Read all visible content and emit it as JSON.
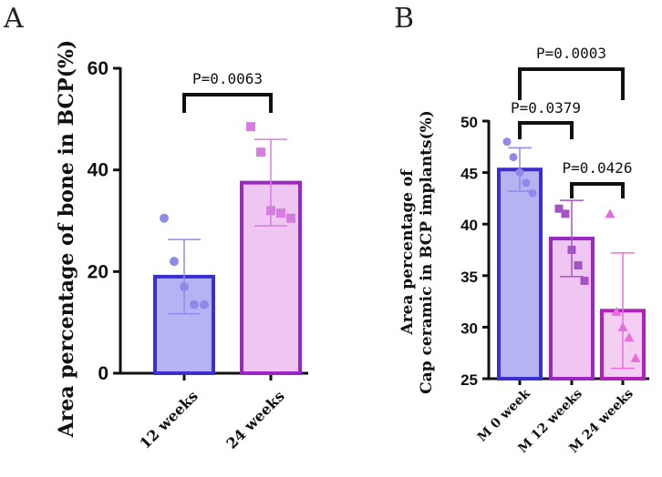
{
  "chart_data": [
    {
      "panel": "A",
      "type": "bar",
      "ylabel": "Area percentage of bone in BCP(%)",
      "xlabel": "",
      "ylim": [
        0,
        60
      ],
      "yticks": [
        0,
        20,
        40,
        60
      ],
      "categories": [
        "12 weeks",
        "24 weeks"
      ],
      "values": [
        19,
        37.5
      ],
      "errors": [
        7.3,
        8.5
      ],
      "points": [
        [
          30.5,
          22,
          17,
          13.5,
          13.5
        ],
        [
          48.5,
          43.5,
          32,
          31.5,
          30.5
        ]
      ],
      "markers": [
        "circle",
        "square"
      ],
      "colors": {
        "edge": [
          "#3a2fd1",
          "#9b27c2"
        ],
        "fill": [
          "#b5b4f2",
          "#efc6f2"
        ],
        "point": [
          "#8f8aea",
          "#d77de1"
        ]
      },
      "comparisons": [
        {
          "from": 0,
          "to": 1,
          "label": "P=0.0063"
        }
      ]
    },
    {
      "panel": "B",
      "type": "bar",
      "ylabel": [
        "Area percentage of",
        "Cap ceramic in BCP implants(%)"
      ],
      "xlabel": "",
      "ylim": [
        25,
        50
      ],
      "yticks": [
        25,
        30,
        35,
        40,
        45,
        50
      ],
      "categories": [
        "M 0 week",
        "M 12 weeks",
        "M 24 weeks"
      ],
      "values": [
        45.3,
        38.6,
        31.6
      ],
      "errors": [
        2.1,
        3.7,
        5.6
      ],
      "points": [
        [
          48,
          46.5,
          45,
          44,
          43
        ],
        [
          41.5,
          41,
          37.5,
          36,
          34.5
        ],
        [
          41,
          31.5,
          30,
          29,
          27
        ]
      ],
      "markers": [
        "circle",
        "square",
        "triangle"
      ],
      "colors": {
        "edge": [
          "#3a2fd1",
          "#9b27c2",
          "#b221b5"
        ],
        "fill": [
          "#b5b4f2",
          "#efc6f2",
          "#f4cdf2"
        ],
        "point": [
          "#8f8aea",
          "#a454c2",
          "#e46fdc"
        ]
      },
      "comparisons": [
        {
          "from": 0,
          "to": 1,
          "label": "P=0.0379"
        },
        {
          "from": 0,
          "to": 2,
          "label": "P=0.0003"
        },
        {
          "from": 1,
          "to": 2,
          "label": "P=0.0426"
        }
      ]
    }
  ]
}
